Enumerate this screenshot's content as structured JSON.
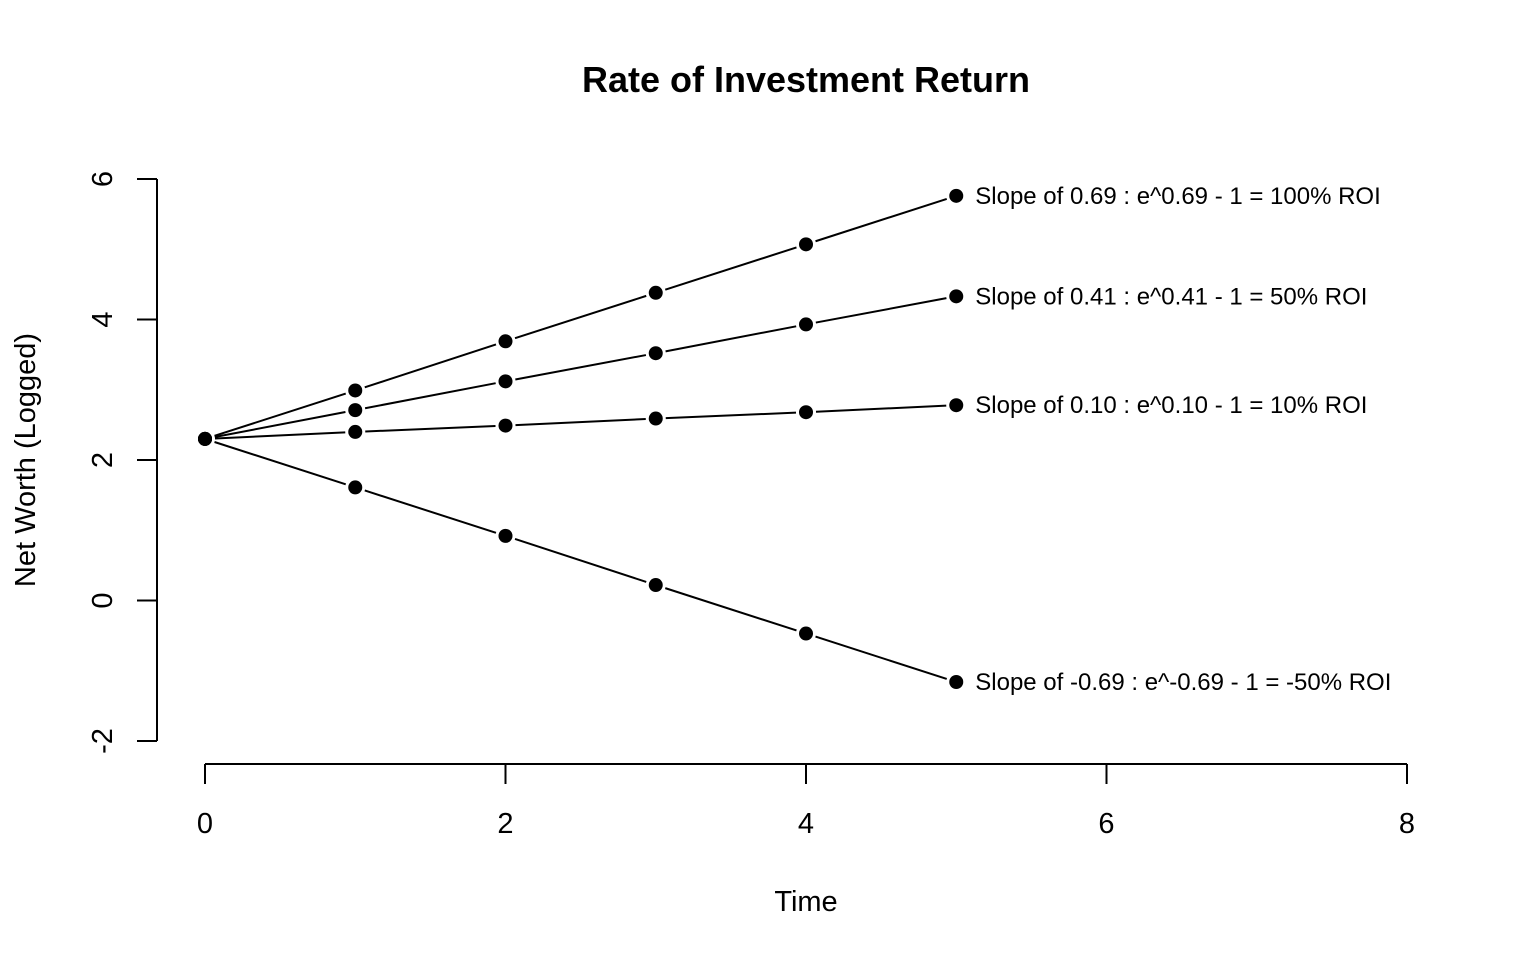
{
  "chart_data": {
    "type": "line",
    "title": "Rate of Investment Return",
    "xlabel": "Time",
    "ylabel": "Net Worth (Logged)",
    "xlim": [
      0,
      8
    ],
    "ylim": [
      -2,
      6
    ],
    "xticks": [
      0,
      2,
      4,
      6,
      8
    ],
    "yticks": [
      -2,
      0,
      2,
      4,
      6
    ],
    "grid": false,
    "legend": "none",
    "x": [
      0,
      1,
      2,
      3,
      4,
      5
    ],
    "series": [
      {
        "values": [
          2.3,
          2.99,
          3.69,
          4.38,
          5.07,
          5.76
        ],
        "annotation": "Slope of 0.69 : e^0.69 - 1 = 100% ROI"
      },
      {
        "values": [
          2.3,
          2.71,
          3.12,
          3.52,
          3.93,
          4.33
        ],
        "annotation": "Slope of 0.41 : e^0.41 - 1 = 50% ROI"
      },
      {
        "values": [
          2.3,
          2.4,
          2.49,
          2.59,
          2.68,
          2.78
        ],
        "annotation": "Slope of 0.10 : e^0.10 - 1 = 10% ROI"
      },
      {
        "values": [
          2.3,
          1.61,
          0.92,
          0.22,
          -0.47,
          -1.16
        ],
        "annotation": "Slope of -0.69 : e^-0.69 - 1 = -50% ROI"
      }
    ],
    "colors": {
      "line": "#000000",
      "point": "#000000"
    }
  }
}
